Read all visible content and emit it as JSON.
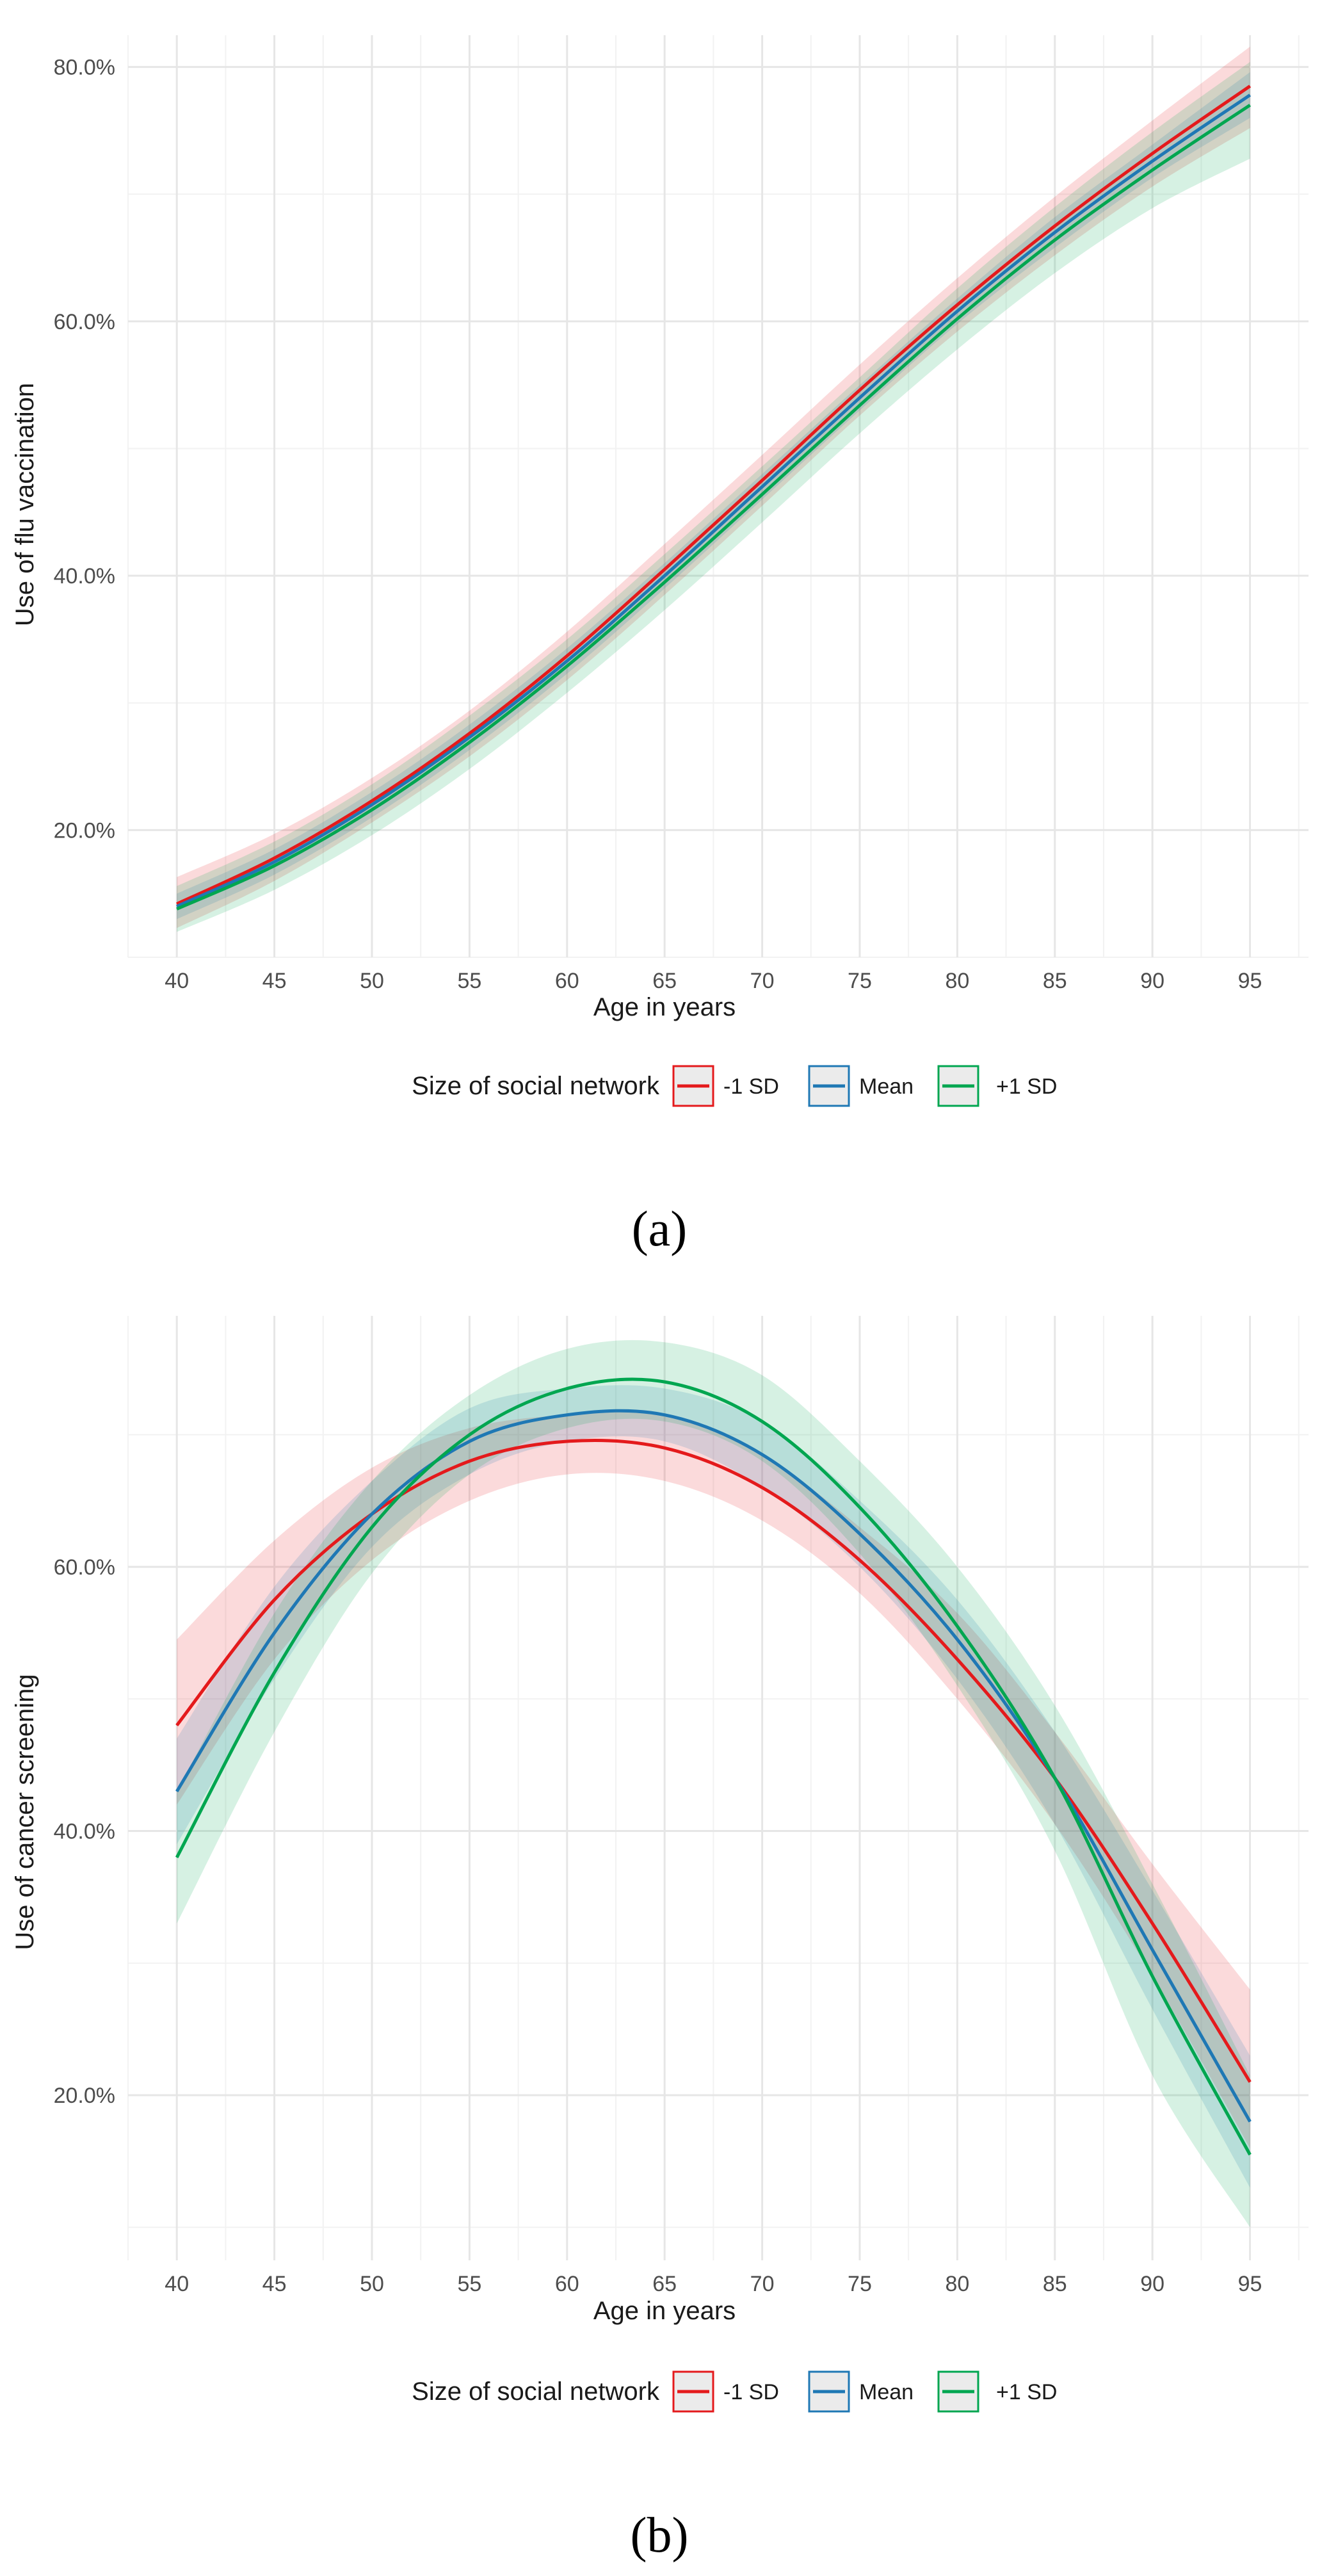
{
  "chart_data": [
    {
      "type": "line",
      "panel_label": "(a)",
      "xlabel": "Age in years",
      "ylabel": "Use of flu vaccination",
      "x_ticks": [
        40,
        45,
        50,
        55,
        60,
        65,
        70,
        75,
        80,
        85,
        90,
        95
      ],
      "y_ticks": [
        "20.0%",
        "40.0%",
        "60.0%",
        "80.0%"
      ],
      "y_tick_values": [
        20,
        40,
        60,
        80
      ],
      "xlim": [
        37.5,
        98
      ],
      "ylim": [
        10,
        82.5
      ],
      "grid": true,
      "legend": {
        "title": "Size of social network",
        "position": "bottom"
      },
      "x": [
        40,
        45,
        50,
        55,
        60,
        65,
        70,
        75,
        80,
        85,
        90,
        95
      ],
      "series": [
        {
          "name": "-1 SD",
          "color": "#e41a1c",
          "values": [
            14.2,
            17.8,
            22.3,
            27.6,
            33.7,
            40.5,
            47.5,
            54.6,
            61.3,
            67.5,
            73.2,
            78.5
          ],
          "lower": [
            12.3,
            16.0,
            20.6,
            25.8,
            31.8,
            38.5,
            45.5,
            52.6,
            59.2,
            65.2,
            70.6,
            75.2
          ],
          "upper": [
            16.3,
            19.7,
            24.1,
            29.4,
            35.6,
            42.5,
            49.5,
            56.6,
            63.4,
            69.8,
            75.8,
            81.6
          ]
        },
        {
          "name": "Mean",
          "color": "#1f78b4",
          "values": [
            14.0,
            17.5,
            22.0,
            27.3,
            33.3,
            40.0,
            47.0,
            54.0,
            60.8,
            67.0,
            72.6,
            77.8
          ],
          "lower": [
            13.0,
            16.5,
            21.0,
            26.3,
            32.3,
            39.0,
            46.0,
            53.0,
            59.8,
            65.8,
            71.3,
            76.0
          ],
          "upper": [
            15.0,
            18.5,
            23.0,
            28.3,
            34.3,
            41.0,
            48.0,
            55.0,
            61.8,
            68.2,
            73.9,
            79.6
          ]
        },
        {
          "name": "+1 SD",
          "color": "#00a650",
          "values": [
            13.8,
            17.2,
            21.6,
            26.9,
            32.9,
            39.5,
            46.4,
            53.4,
            60.2,
            66.4,
            71.9,
            77.0
          ],
          "lower": [
            12.0,
            15.3,
            19.6,
            24.8,
            30.8,
            37.3,
            44.2,
            51.2,
            57.8,
            63.8,
            68.9,
            72.8
          ],
          "upper": [
            15.6,
            19.1,
            23.6,
            29.0,
            35.0,
            41.7,
            48.6,
            55.6,
            62.6,
            69.0,
            74.9,
            80.4
          ]
        }
      ]
    },
    {
      "type": "line",
      "panel_label": "(b)",
      "xlabel": "Age in years",
      "ylabel": "Use of cancer screening",
      "x_ticks": [
        40,
        45,
        50,
        55,
        60,
        65,
        70,
        75,
        80,
        85,
        90,
        95
      ],
      "y_ticks": [
        "20.0%",
        "40.0%",
        "60.0%"
      ],
      "y_tick_values": [
        20,
        40,
        60
      ],
      "xlim": [
        37.5,
        98
      ],
      "ylim": [
        7.5,
        79
      ],
      "grid": true,
      "legend": {
        "title": "Size of social network",
        "position": "bottom"
      },
      "x": [
        40,
        45,
        50,
        55,
        60,
        65,
        70,
        75,
        80,
        85,
        90,
        95
      ],
      "series": [
        {
          "name": "-1 SD",
          "color": "#e41a1c",
          "values": [
            48.0,
            57.5,
            64.0,
            68.0,
            69.5,
            69.0,
            66.0,
            60.5,
            53.0,
            44.0,
            33.0,
            21.0
          ],
          "lower": [
            42.0,
            53.0,
            60.5,
            65.0,
            67.0,
            66.5,
            63.5,
            58.0,
            50.0,
            40.5,
            29.0,
            16.0
          ],
          "upper": [
            54.5,
            62.0,
            67.5,
            70.5,
            71.5,
            71.5,
            68.5,
            63.0,
            56.5,
            47.5,
            37.5,
            28.0
          ]
        },
        {
          "name": "Mean",
          "color": "#1f78b4",
          "values": [
            43.0,
            55.0,
            64.0,
            69.5,
            71.5,
            71.5,
            68.5,
            62.5,
            54.5,
            44.0,
            31.0,
            18.0
          ],
          "lower": [
            39.0,
            51.5,
            61.5,
            67.0,
            69.5,
            69.5,
            66.0,
            60.0,
            51.5,
            40.5,
            26.5,
            13.0
          ],
          "upper": [
            47.0,
            58.5,
            66.5,
            72.0,
            73.5,
            73.5,
            71.0,
            65.0,
            57.5,
            47.5,
            35.5,
            23.0
          ]
        },
        {
          "name": "+1 SD",
          "color": "#00a650",
          "values": [
            38.0,
            52.0,
            63.0,
            70.0,
            73.5,
            74.0,
            71.0,
            64.5,
            55.5,
            44.0,
            29.0,
            15.5
          ],
          "lower": [
            33.0,
            47.5,
            59.5,
            67.0,
            70.5,
            71.0,
            68.0,
            61.0,
            51.0,
            38.5,
            21.5,
            10.0
          ],
          "upper": [
            43.0,
            56.5,
            66.5,
            73.0,
            76.5,
            77.0,
            74.5,
            68.0,
            60.0,
            49.5,
            36.0,
            21.5
          ]
        }
      ]
    }
  ]
}
